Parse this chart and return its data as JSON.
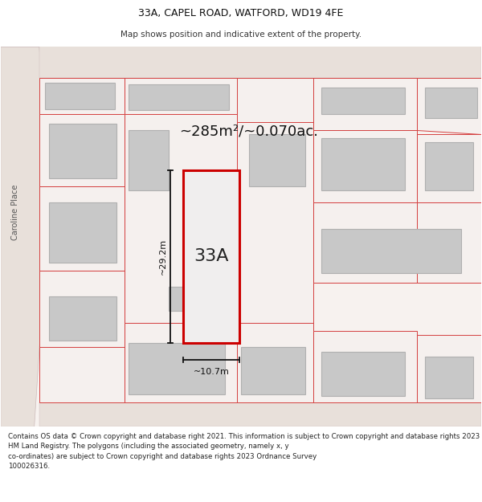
{
  "title": "33A, CAPEL ROAD, WATFORD, WD19 4FE",
  "subtitle": "Map shows position and indicative extent of the property.",
  "footer": "Contains OS data © Crown copyright and database right 2021. This information is subject to Crown copyright and database rights 2023 and is reproduced with the permission of\nHM Land Registry. The polygons (including the associated geometry, namely x, y\nco-ordinates) are subject to Crown copyright and database rights 2023 Ordnance Survey\n100026316.",
  "area_label": "~285m²/~0.070ac.",
  "property_label": "33A",
  "width_label": "~10.7m",
  "height_label": "~29.2m",
  "street_label": "Caroline Place",
  "bg_color": "#ffffff",
  "map_bg": "#f7f2ef",
  "plot_outline": "#d44040",
  "plot_fill": "#f5f0ee",
  "building_fill": "#c8c8c8",
  "building_outline": "#b0b0b0",
  "subject_fill": "#f0eeee",
  "subject_outline": "#cc0000",
  "road_fill": "#e8e0da",
  "title_fontsize": 9,
  "subtitle_fontsize": 7.5,
  "footer_fontsize": 6.2,
  "area_fontsize": 13,
  "label_fontsize": 16,
  "dim_fontsize": 8
}
